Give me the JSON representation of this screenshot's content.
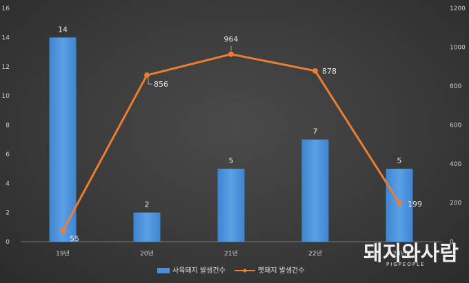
{
  "chart_data": {
    "type": "bar+line",
    "categories": [
      "19년",
      "20년",
      "21년",
      "22년",
      "23년"
    ],
    "series": [
      {
        "name": "사육돼지 발생건수",
        "type": "bar",
        "axis": "left",
        "values": [
          14,
          2,
          5,
          7,
          5
        ],
        "color": "#4a90d9"
      },
      {
        "name": "멧돼지 발생건수",
        "type": "line",
        "axis": "right",
        "values": [
          55,
          856,
          964,
          878,
          199
        ],
        "color": "#ed7d31"
      }
    ],
    "y_left": {
      "min": 0,
      "max": 16,
      "step": 2
    },
    "y_right": {
      "min": 0,
      "max": 1200,
      "step": 200
    },
    "grid": false,
    "legend": "bottom-center"
  },
  "watermark": {
    "main": "돼지와사람",
    "sub": "PIGPEOPLE"
  }
}
